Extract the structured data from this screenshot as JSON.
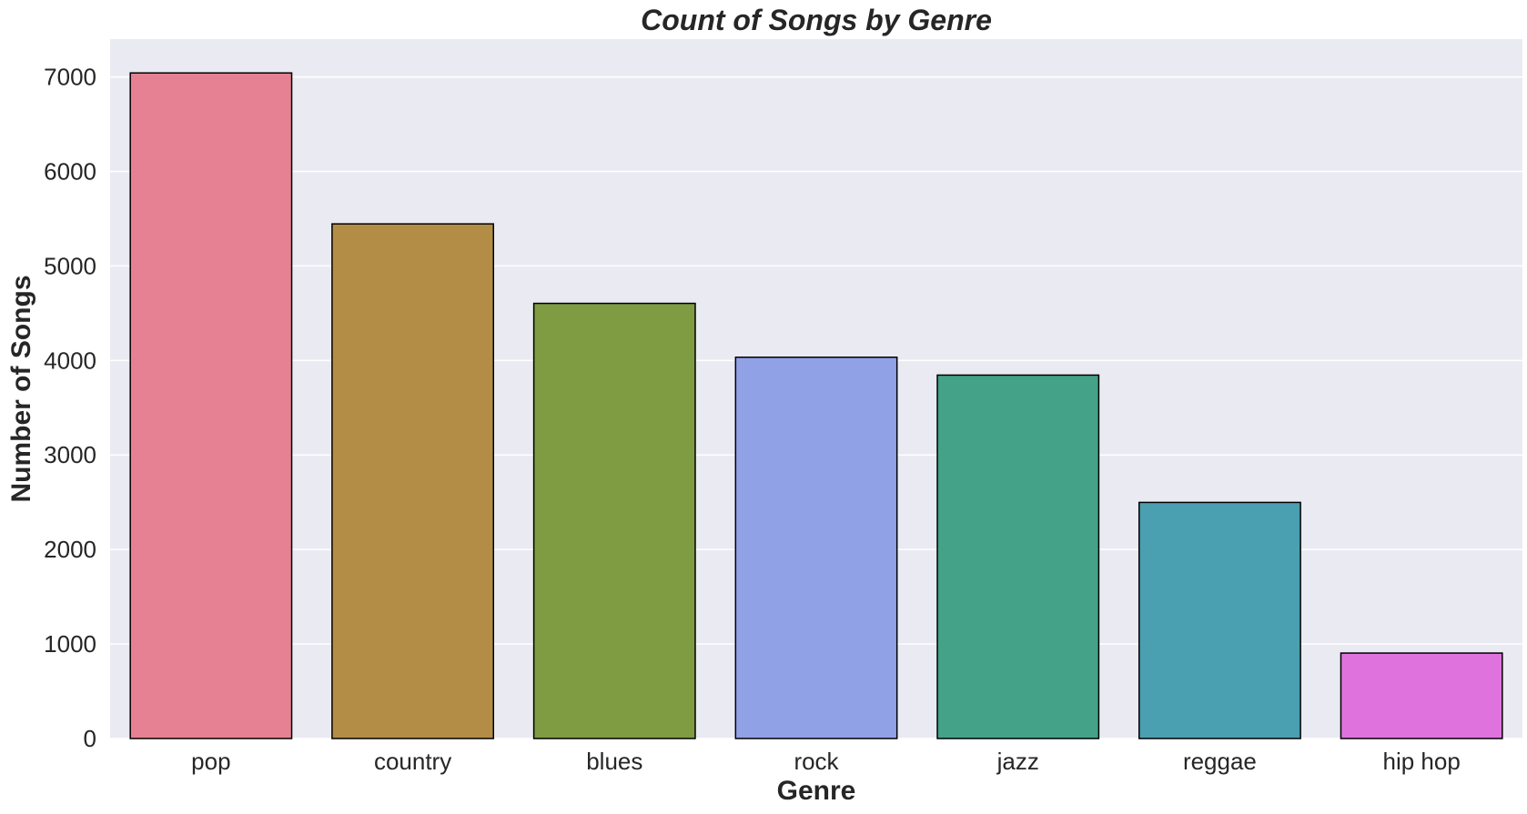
{
  "chart_data": {
    "type": "bar",
    "title": "Count of Songs by Genre",
    "xlabel": "Genre",
    "ylabel": "Number of Songs",
    "categories": [
      "pop",
      "country",
      "blues",
      "rock",
      "jazz",
      "reggae",
      "hip hop"
    ],
    "values": [
      7042,
      5445,
      4604,
      4034,
      3845,
      2498,
      904
    ],
    "colors": [
      "#e68193",
      "#b38d46",
      "#7f9c42",
      "#91a1e6",
      "#43a287",
      "#4a9fb0",
      "#e072de"
    ],
    "ylim": [
      0,
      7400
    ],
    "yticks": [
      0,
      1000,
      2000,
      3000,
      4000,
      5000,
      6000,
      7000
    ],
    "ytick_labels": [
      "0",
      "1000",
      "2000",
      "3000",
      "4000",
      "5000",
      "6000",
      "7000"
    ],
    "grid": true,
    "plot_background": "#eaeaf2",
    "bar_edge_color": "#000000"
  }
}
